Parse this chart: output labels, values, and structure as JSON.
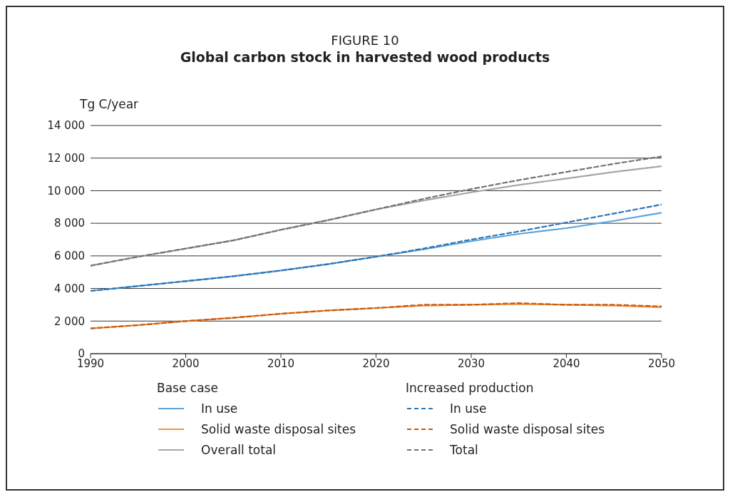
{
  "chart_data": {
    "type": "line",
    "title": "FIGURE 10",
    "subtitle": "Global carbon stock in harvested wood products",
    "ylabel": "Tg C/year",
    "x": [
      1990,
      1995,
      2000,
      2005,
      2010,
      2015,
      2020,
      2025,
      2030,
      2035,
      2040,
      2045,
      2050
    ],
    "xlim": [
      1990,
      2050
    ],
    "xticks": [
      1990,
      2000,
      2010,
      2020,
      2030,
      2040,
      2050
    ],
    "ylim": [
      0,
      14000
    ],
    "yticks": [
      0,
      {
        "value": 2000,
        "label": "2 000"
      },
      {
        "value": 4000,
        "label": "4 000"
      },
      {
        "value": 6000,
        "label": "6 000"
      },
      {
        "value": 8000,
        "label": "8 000"
      },
      {
        "value": 10000,
        "label": "10 000"
      },
      {
        "value": 12000,
        "label": "12 000"
      },
      {
        "value": 14000,
        "label": "14 000"
      }
    ],
    "grid": "y",
    "legend": "bottom",
    "legend_title": [
      "Base case",
      "Increased production"
    ],
    "marker": "none",
    "series": [
      {
        "name": "In use",
        "color": "#5ba3dc",
        "line_style": "solid",
        "values": [
          3850,
          4150,
          4450,
          4750,
          5100,
          5500,
          5950,
          6400,
          6900,
          7350,
          7700,
          8150,
          8650
        ]
      },
      {
        "name": "Solid waste disposal sites",
        "color": "#f5923e",
        "line_style": "solid",
        "values": [
          1550,
          1750,
          2000,
          2200,
          2450,
          2650,
          2800,
          2950,
          3000,
          3050,
          3000,
          2950,
          2850
        ]
      },
      {
        "name": "Overall total",
        "color": "#a6a6a6",
        "line_style": "solid",
        "values": [
          5400,
          5950,
          6450,
          6950,
          7600,
          8200,
          8850,
          9400,
          9900,
          10350,
          10750,
          11150,
          11500
        ]
      },
      {
        "name": "In use",
        "color": "#2e75b6",
        "line_style": "dashed",
        "values": [
          3850,
          4150,
          4450,
          4750,
          5100,
          5500,
          5950,
          6450,
          7000,
          7500,
          8050,
          8600,
          9150
        ]
      },
      {
        "name": "Solid waste disposal sites",
        "color": "#c55a11",
        "line_style": "dashed",
        "values": [
          1550,
          1750,
          2000,
          2200,
          2450,
          2650,
          2800,
          3000,
          3000,
          3100,
          3000,
          3000,
          2900
        ]
      },
      {
        "name": "Total",
        "color": "#737373",
        "line_style": "dashed",
        "values": [
          5400,
          5950,
          6450,
          6950,
          7600,
          8200,
          8850,
          9500,
          10100,
          10650,
          11150,
          11650,
          12100
        ]
      }
    ]
  }
}
